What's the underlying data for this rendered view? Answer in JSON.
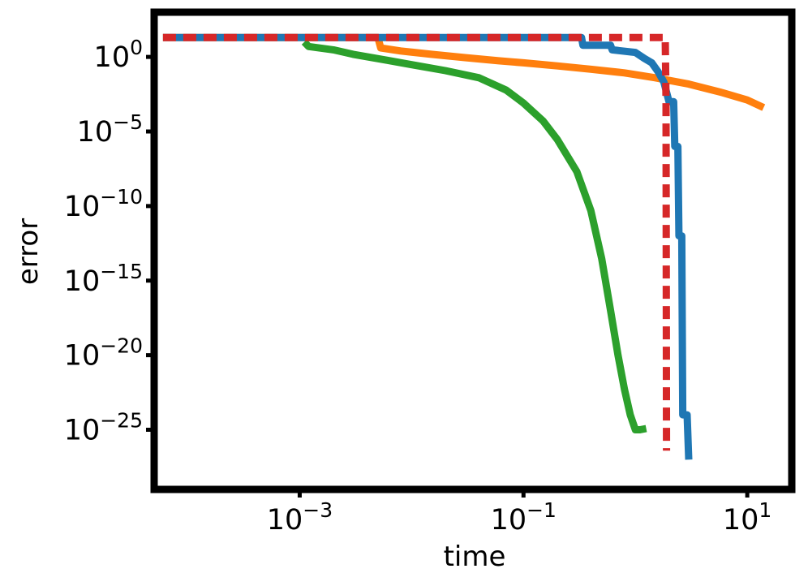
{
  "chart_data": {
    "type": "line",
    "xlabel": "time",
    "ylabel": "error",
    "x_scale": "log",
    "y_scale": "log",
    "xlim": [
      5e-05,
      25
    ],
    "ylim": [
      1e-29,
      1000.0
    ],
    "x_ticks": [
      {
        "value": 0.001,
        "base": "10",
        "exp": "−3"
      },
      {
        "value": 0.1,
        "base": "10",
        "exp": "−1"
      },
      {
        "value": 10,
        "base": "10",
        "exp": "1"
      }
    ],
    "y_ticks": [
      {
        "value": 1,
        "base": "10",
        "exp": "0"
      },
      {
        "value": 1e-05,
        "base": "10",
        "exp": "−5"
      },
      {
        "value": 1e-10,
        "base": "10",
        "exp": "−10"
      },
      {
        "value": 1e-15,
        "base": "10",
        "exp": "−15"
      },
      {
        "value": 1e-20,
        "base": "10",
        "exp": "−20"
      },
      {
        "value": 1e-25,
        "base": "10",
        "exp": "−25"
      }
    ],
    "grid": false,
    "legend": "none",
    "series": [
      {
        "color": "#ff7f0e",
        "dash": "solid",
        "x": [
          6e-05,
          0.005,
          0.0053,
          0.008,
          0.015,
          0.03,
          0.06,
          0.1,
          0.2,
          0.4,
          0.8,
          1.5,
          3,
          6,
          10,
          14
        ],
        "y": [
          20,
          20,
          4,
          2.5,
          1.5,
          0.9,
          0.55,
          0.4,
          0.25,
          0.15,
          0.085,
          0.04,
          0.015,
          0.004,
          0.0013,
          0.0004
        ]
      },
      {
        "color": "#1f77b4",
        "dash": "solid",
        "x": [
          6e-05,
          0.33,
          0.34,
          0.6,
          0.62,
          1.0,
          1.2,
          1.4,
          1.6,
          1.8,
          2.0,
          2.2,
          2.25,
          2.4,
          2.45,
          2.6,
          2.65,
          2.9,
          3.0
        ],
        "y": [
          20,
          20,
          6,
          6,
          3,
          2,
          0.8,
          0.4,
          0.1,
          0.02,
          0.001,
          0.001,
          1e-06,
          1e-06,
          1e-12,
          1e-12,
          1e-24,
          1e-24,
          1e-27
        ]
      },
      {
        "color": "#2ca02c",
        "dash": "solid",
        "x": [
          0.0011,
          0.0012,
          0.002,
          0.003,
          0.006,
          0.01,
          0.02,
          0.04,
          0.07,
          0.1,
          0.15,
          0.2,
          0.3,
          0.4,
          0.5,
          0.6,
          0.7,
          0.8,
          0.9,
          1.0,
          1.1,
          1.25
        ],
        "y": [
          10,
          5,
          3,
          1.5,
          0.6,
          0.3,
          0.12,
          0.04,
          0.006,
          0.0008,
          5e-05,
          3e-06,
          2e-08,
          5e-11,
          3e-14,
          1e-17,
          1e-20,
          5e-23,
          1e-24,
          1e-25,
          1e-25,
          1.2e-25
        ]
      },
      {
        "color": "#d62728",
        "dash": "dashed",
        "x": [
          6e-05,
          1.85,
          1.88,
          1.9
        ],
        "y": [
          20,
          20,
          0.001,
          4e-27
        ]
      }
    ]
  }
}
